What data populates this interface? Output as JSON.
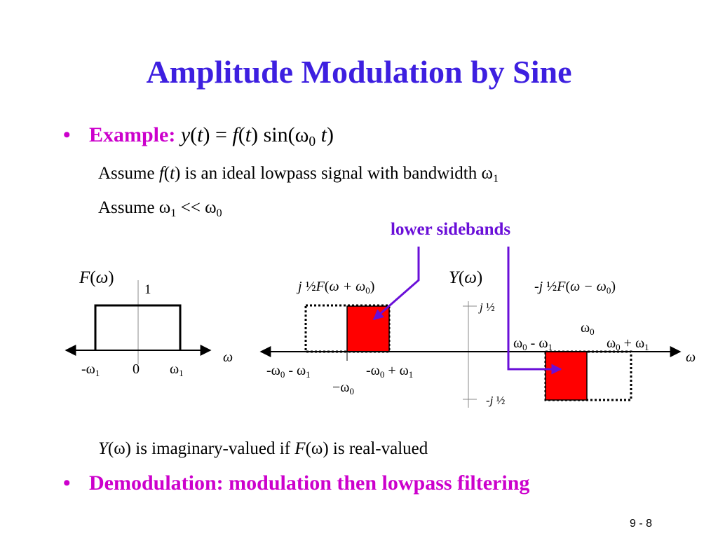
{
  "title": "Amplitude Modulation by Sine",
  "bullets": [
    {
      "label": "Example:",
      "text": [
        {
          "i": "y"
        },
        "(",
        {
          "i": "t"
        },
        ") = ",
        {
          "i": "f"
        },
        "(",
        {
          "i": "t"
        },
        ") sin(ω",
        {
          "sub": "0"
        },
        " ",
        {
          "i": "t"
        },
        ")"
      ]
    },
    {
      "label": "Demodulation: modulation then lowpass filtering"
    }
  ],
  "lines": [
    [
      "Assume ",
      {
        "i": "f"
      },
      "(",
      {
        "i": "t"
      },
      ") is an ideal lowpass signal with bandwidth ω",
      {
        "sub": "1"
      }
    ],
    [
      "Assume ω",
      {
        "sub": "1"
      },
      " << ω",
      {
        "sub": "0"
      }
    ],
    [
      {
        "i": "Y"
      },
      "(ω) is imaginary-valued if ",
      {
        "i": "F"
      },
      "(ω) is real-valued"
    ]
  ],
  "annotation": "lower sidebands",
  "left_plot": {
    "labels": [
      [
        {
          "i": "F"
        },
        "(",
        {
          "i": "ω"
        },
        ")"
      ],
      [
        "1"
      ],
      [
        "-ω",
        {
          "sub": "1"
        }
      ],
      [
        "0"
      ],
      [
        "ω",
        {
          "sub": "1"
        }
      ],
      [
        {
          "i": "ω"
        }
      ]
    ]
  },
  "right_plot": {
    "labels": [
      [
        {
          "i": "j"
        },
        " ½",
        {
          "i": "F"
        },
        "(",
        {
          "i": "ω + ω"
        },
        {
          "sub": "0"
        },
        ")"
      ],
      [
        {
          "i": "Y"
        },
        "(",
        {
          "i": "ω"
        },
        ")"
      ],
      [
        "-",
        {
          "i": "j"
        },
        " ½",
        {
          "i": "F"
        },
        "(",
        {
          "i": "ω − ω"
        },
        {
          "sub": "0"
        },
        ")"
      ],
      [
        {
          "i": "j"
        },
        " ½"
      ],
      [
        "ω",
        {
          "sub": "0"
        }
      ],
      [
        "ω",
        {
          "sub": "0"
        },
        " - ω",
        {
          "sub": "1"
        }
      ],
      [
        "ω",
        {
          "sub": "0"
        },
        " + ω",
        {
          "sub": "1"
        }
      ],
      [
        {
          "i": "ω"
        }
      ],
      [
        "-ω",
        {
          "sub": "0"
        },
        " - ω",
        {
          "sub": "1"
        }
      ],
      [
        "-ω",
        {
          "sub": "0"
        },
        " + ω",
        {
          "sub": "1"
        }
      ],
      [
        "−ω",
        {
          "sub": "0"
        }
      ],
      [
        "-",
        {
          "i": "j"
        },
        " ½"
      ]
    ]
  },
  "page_number": "9 - 8"
}
